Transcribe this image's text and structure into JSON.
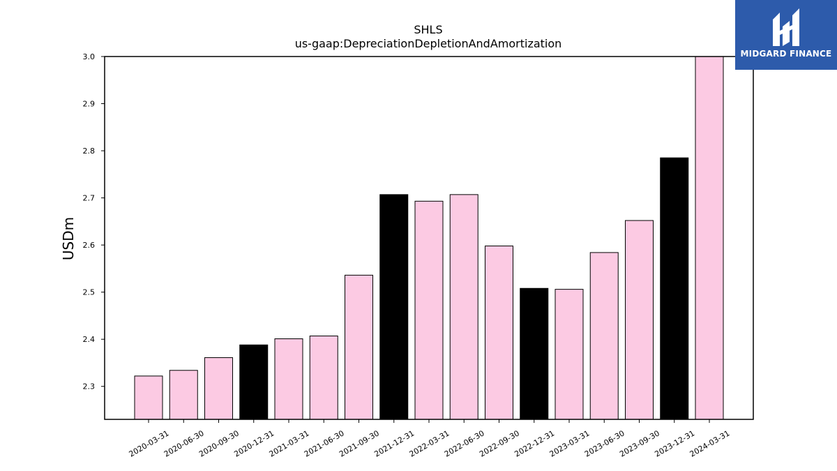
{
  "colors": {
    "bar_default": "#fccae3",
    "bar_highlight": "#000000",
    "bar_edge": "#000000",
    "logo_bg": "#2d5bab"
  },
  "logo": {
    "icon": "midgard-finance-logo-icon",
    "text": "MIDGARD FINANCE"
  },
  "chart_data": {
    "type": "bar",
    "title": "SHLS",
    "subtitle": "us-gaap:DepreciationDepletionAndAmortization",
    "xlabel": "",
    "ylabel": "USDm",
    "ylim": [
      2.23,
      3.0
    ],
    "yticks": [
      "2.3",
      "2.4",
      "2.5",
      "2.6",
      "2.7",
      "2.8",
      "2.9",
      "3.0"
    ],
    "grid": false,
    "categories": [
      "2020-03-31",
      "2020-06-30",
      "2020-09-30",
      "2020-12-31",
      "2021-03-31",
      "2021-06-30",
      "2021-09-30",
      "2021-12-31",
      "2022-03-31",
      "2022-06-30",
      "2022-09-30",
      "2022-12-31",
      "2023-03-31",
      "2023-06-30",
      "2023-09-30",
      "2023-12-31",
      "2024-03-31"
    ],
    "values": [
      2.322,
      2.334,
      2.361,
      2.388,
      2.401,
      2.407,
      2.536,
      2.707,
      2.693,
      2.707,
      2.598,
      2.508,
      2.506,
      2.584,
      2.652,
      2.785,
      3.0
    ],
    "highlighted": [
      false,
      false,
      false,
      true,
      false,
      false,
      false,
      true,
      false,
      false,
      false,
      true,
      false,
      false,
      false,
      true,
      false
    ]
  }
}
